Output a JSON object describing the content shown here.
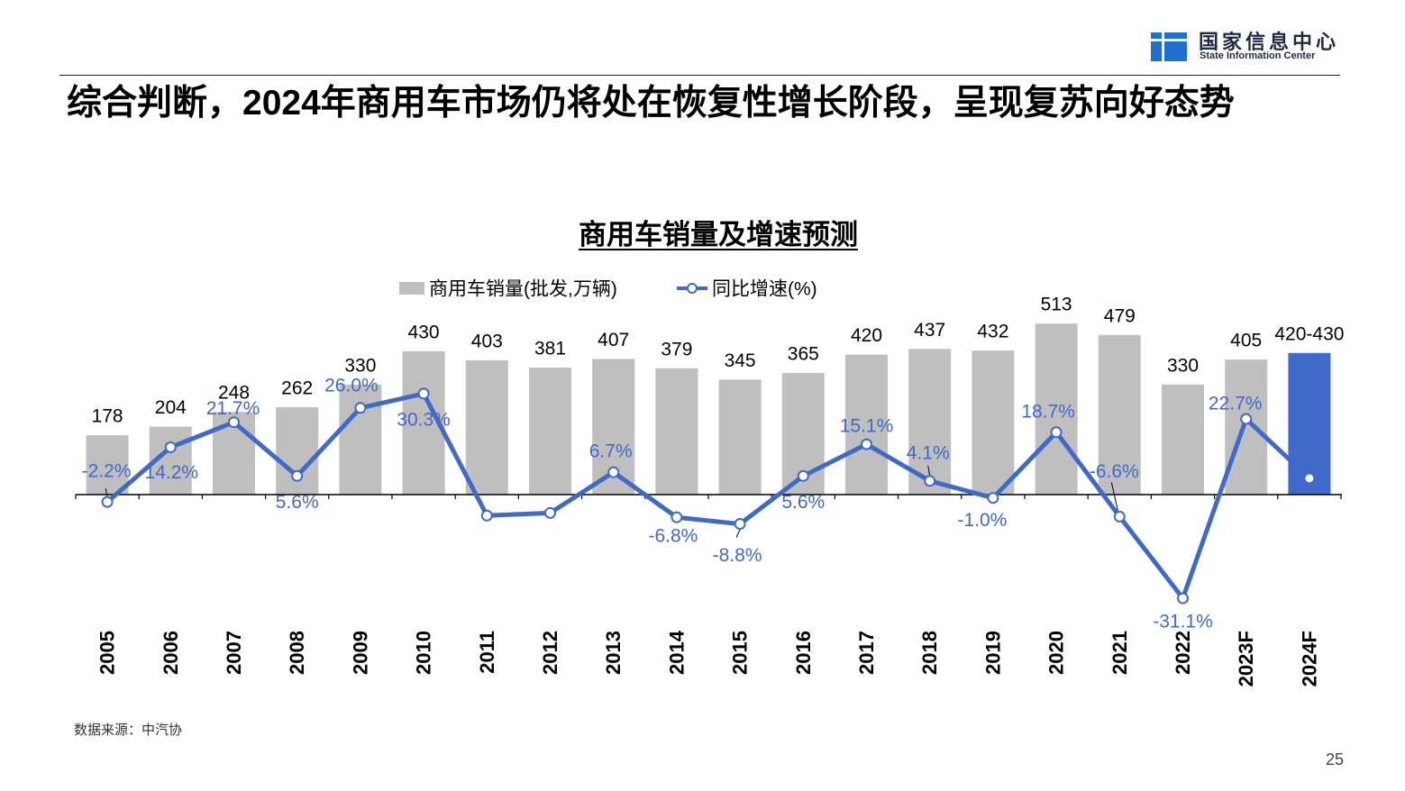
{
  "header": {
    "org_name_cn": "国家信息中心",
    "org_name_en": "State Information Center",
    "logo_icon": "state-information-center-logo-icon"
  },
  "slide": {
    "title": "综合判断，2024年商用车市场仍将处在恢复性增长阶段，呈现复苏向好态势",
    "source": "数据来源：中汽协",
    "page_number": "25"
  },
  "chart_data": {
    "type": "bar",
    "title": "商用车销量及增速预测",
    "categories": [
      "2005",
      "2006",
      "2007",
      "2008",
      "2009",
      "2010",
      "2011",
      "2012",
      "2013",
      "2014",
      "2015",
      "2016",
      "2017",
      "2018",
      "2019",
      "2020",
      "2021",
      "2022",
      "2023F",
      "2024F"
    ],
    "series": [
      {
        "name": "商用车销量(批发,万辆)",
        "type": "bar",
        "secondary_axis": false,
        "values": [
          178,
          204,
          248,
          262,
          330,
          430,
          403,
          381,
          407,
          379,
          345,
          365,
          420,
          437,
          432,
          513,
          479,
          330,
          405,
          425
        ],
        "labels": [
          "178",
          "204",
          "248",
          "262",
          "330",
          "430",
          "403",
          "381",
          "407",
          "379",
          "345",
          "365",
          "420",
          "437",
          "432",
          "513",
          "479",
          "330",
          "405",
          "420-430"
        ],
        "highlight_index": 19
      },
      {
        "name": "同比增速(%)",
        "type": "line",
        "marker": "circle",
        "secondary_axis": true,
        "values": [
          -2.2,
          14.2,
          21.7,
          5.6,
          26.0,
          30.3,
          -6.3,
          -5.5,
          6.7,
          -6.8,
          -8.8,
          5.6,
          15.1,
          4.1,
          -1.0,
          18.7,
          -6.6,
          -31.1,
          22.7,
          4.9
        ],
        "labels": [
          "-2.2%",
          "14.2%",
          "21.7%",
          "5.6%",
          "26.0%",
          "30.3%",
          null,
          null,
          "6.7%",
          "-6.8%",
          "-8.8%",
          "5.6%",
          "15.1%",
          "4.1%",
          "-1.0%",
          "18.7%",
          "-6.6%",
          "-31.1%",
          "22.7%",
          null
        ]
      }
    ],
    "ylim": [
      -400,
      800
    ],
    "y2lim": [
      -40,
      80
    ],
    "axes_visible": false,
    "grid": false,
    "legend": "top",
    "colors": {
      "bar": "#BFBFBF",
      "bar_highlight": "#3F6AC9",
      "line": "#3F6AC9",
      "line_label": "#3F6AC9",
      "marker_fill": "#FFFFFF",
      "text": "#000000",
      "logo": "#1E6FCF"
    }
  }
}
